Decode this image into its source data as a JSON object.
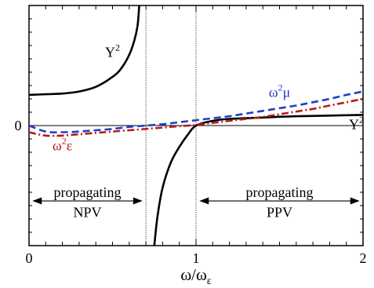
{
  "chart_data": {
    "type": "line",
    "xlabel": "ω/ω",
    "xlabel_sub": "ε",
    "ylabel": "",
    "xlim": [
      0,
      2
    ],
    "ylim": [
      -1.8,
      1.8
    ],
    "x_ticks": [
      0,
      1,
      2
    ],
    "x_tick_labels": [
      "0",
      "1",
      "2"
    ],
    "y_ticks": [
      0
    ],
    "y_tick_labels": [
      "0"
    ],
    "grid": false,
    "vlines": [
      0.7,
      1.0
    ],
    "hline": 0,
    "series": [
      {
        "name": "Y²",
        "color": "#000000",
        "style": "solid",
        "segments": [
          {
            "x": [
              0,
              0.1,
              0.2,
              0.3,
              0.4,
              0.5,
              0.55,
              0.6,
              0.63,
              0.65,
              0.66
            ],
            "y": [
              0.46,
              0.47,
              0.48,
              0.51,
              0.58,
              0.73,
              0.85,
              1.06,
              1.27,
              1.5,
              1.8
            ]
          },
          {
            "x": [
              0.75,
              0.77,
              0.8,
              0.85,
              0.9,
              0.95,
              1.0,
              1.1,
              1.2,
              1.4,
              1.6,
              1.8,
              2.0
            ],
            "y": [
              -1.8,
              -1.35,
              -0.93,
              -0.55,
              -0.32,
              -0.14,
              0,
              0.07,
              0.1,
              0.12,
              0.14,
              0.15,
              0.16
            ]
          }
        ]
      },
      {
        "name": "ω²μ",
        "color": "#1f3fc8",
        "style": "dashed",
        "x": [
          0,
          0.1,
          0.2,
          0.3,
          0.4,
          0.5,
          0.6,
          0.7,
          0.8,
          0.9,
          1.0,
          1.1,
          1.2,
          1.3,
          1.4,
          1.5,
          1.6,
          1.7,
          1.8,
          1.9,
          2.0
        ],
        "y": [
          0.0,
          -0.09,
          -0.1,
          -0.09,
          -0.07,
          -0.05,
          -0.02,
          0.0,
          0.02,
          0.05,
          0.08,
          0.11,
          0.14,
          0.18,
          0.22,
          0.26,
          0.3,
          0.35,
          0.4,
          0.46,
          0.51
        ]
      },
      {
        "name": "ω²ε",
        "color": "#b81c1c",
        "style": "dashdot",
        "x": [
          0,
          0.1,
          0.2,
          0.3,
          0.4,
          0.5,
          0.6,
          0.7,
          0.8,
          0.9,
          1.0,
          1.1,
          1.2,
          1.3,
          1.4,
          1.5,
          1.6,
          1.7,
          1.8,
          1.9,
          2.0
        ],
        "y": [
          -0.1,
          -0.15,
          -0.15,
          -0.13,
          -0.11,
          -0.09,
          -0.07,
          -0.05,
          -0.03,
          -0.01,
          0.01,
          0.04,
          0.07,
          0.1,
          0.13,
          0.17,
          0.21,
          0.25,
          0.3,
          0.35,
          0.4
        ]
      }
    ],
    "annotations": [
      {
        "text": "Y",
        "sup": "2",
        "x": 0.5,
        "y": 1.1
      },
      {
        "text": "ω",
        "sup": "2",
        "after": "μ",
        "x": 1.5,
        "y": 0.5,
        "color": "#1f3fc8"
      },
      {
        "text": "ω",
        "sup": "2",
        "after": "ε",
        "x": 0.2,
        "y": -0.3,
        "color": "#b81c1c"
      },
      {
        "text": "Y",
        "sup": "2",
        "x": 1.96,
        "y": 0.02
      },
      {
        "text": "propagating",
        "x": 0.35,
        "y": -1.0
      },
      {
        "text": "NPV",
        "x": 0.35,
        "y": -1.3
      },
      {
        "text": "propagating",
        "x": 1.5,
        "y": -1.0
      },
      {
        "text": "PPV",
        "x": 1.5,
        "y": -1.3
      }
    ],
    "arrows": [
      {
        "x1": 0.02,
        "x2": 0.68,
        "y": -1.13
      },
      {
        "x1": 1.02,
        "x2": 1.98,
        "y": -1.13
      }
    ]
  }
}
